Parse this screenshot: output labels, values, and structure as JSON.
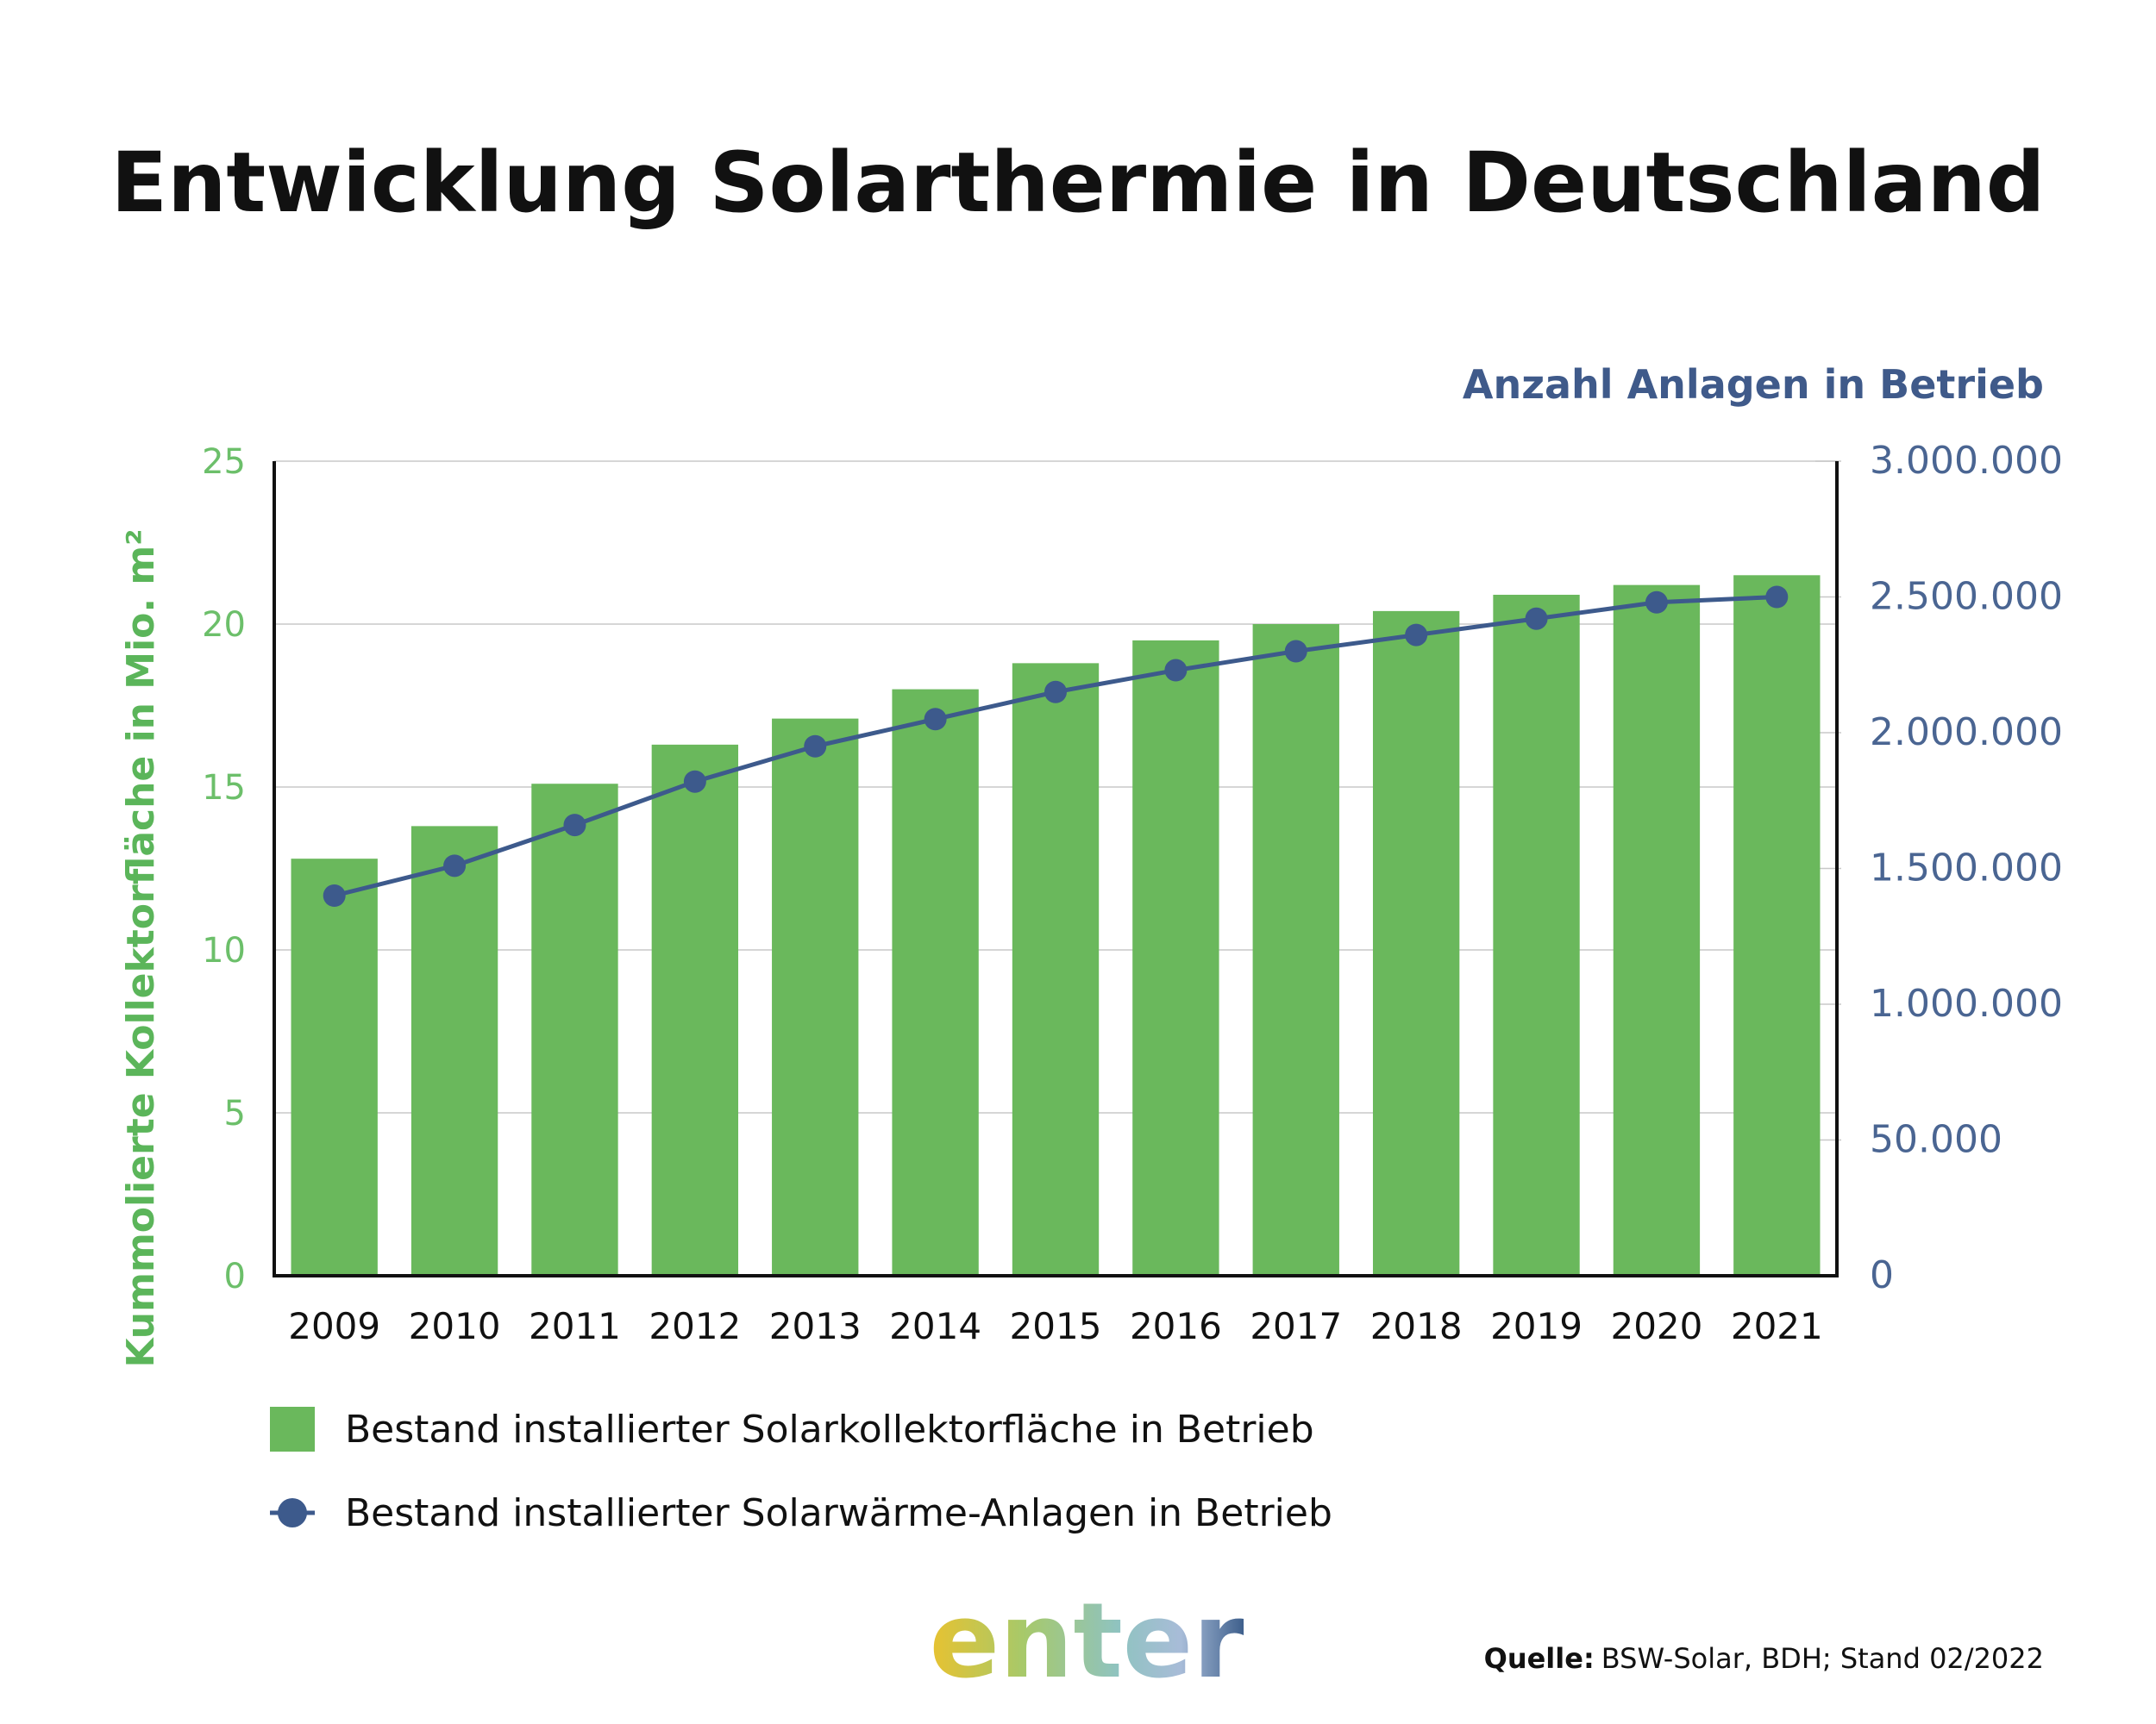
{
  "title": "Entwicklung Solarthermie in Deutschland",
  "chart_data": {
    "type": "bar",
    "title": "Entwicklung Solarthermie in Deutschland",
    "categories": [
      "2009",
      "2010",
      "2011",
      "2012",
      "2013",
      "2014",
      "2015",
      "2016",
      "2017",
      "2018",
      "2019",
      "2020",
      "2021"
    ],
    "series": [
      {
        "name": "Bestand installierter Solarkollektorfläche in Betrieb",
        "type": "bar",
        "axis": "left",
        "values": [
          12.8,
          13.8,
          15.1,
          16.3,
          17.1,
          18.0,
          18.8,
          19.5,
          20.0,
          20.4,
          20.9,
          21.2,
          21.5
        ]
      },
      {
        "name": "Bestand installierter Solarwärme-Anlagen in Betrieb",
        "type": "line",
        "axis": "right",
        "values": [
          1400000,
          1510000,
          1660000,
          1820000,
          1950000,
          2050000,
          2150000,
          2230000,
          2300000,
          2360000,
          2420000,
          2480000,
          2500000
        ]
      }
    ],
    "ylabel": "Kummolierte Kollektorfläche in Mio. m²",
    "y2label": "Anzahl Anlagen in Betrieb",
    "ylim": [
      0,
      25
    ],
    "y2lim": [
      0,
      3000000
    ],
    "yticks": [
      "0",
      "5",
      "10",
      "15",
      "20",
      "25"
    ],
    "y2ticks": [
      "0",
      "50.000",
      "1.000.000",
      "1.500.000",
      "2.000.000",
      "2.500.000",
      "3.000.000"
    ],
    "grid": true,
    "legend_position": "bottom-left"
  },
  "colors": {
    "bar": "#6ab85c",
    "line": "#3d5a8c",
    "left_axis_text": "#6cbf6a",
    "right_axis_text": "#4a6592"
  },
  "legend": {
    "bar_label": "Bestand installierter Solarkollektorfläche in Betrieb",
    "line_label": "Bestand installierter Solarwärme-Anlagen in Betrieb"
  },
  "source": {
    "label": "Quelle:",
    "text": "BSW-Solar, BDH; Stand 02/2022"
  },
  "logo": {
    "text": "enter"
  }
}
